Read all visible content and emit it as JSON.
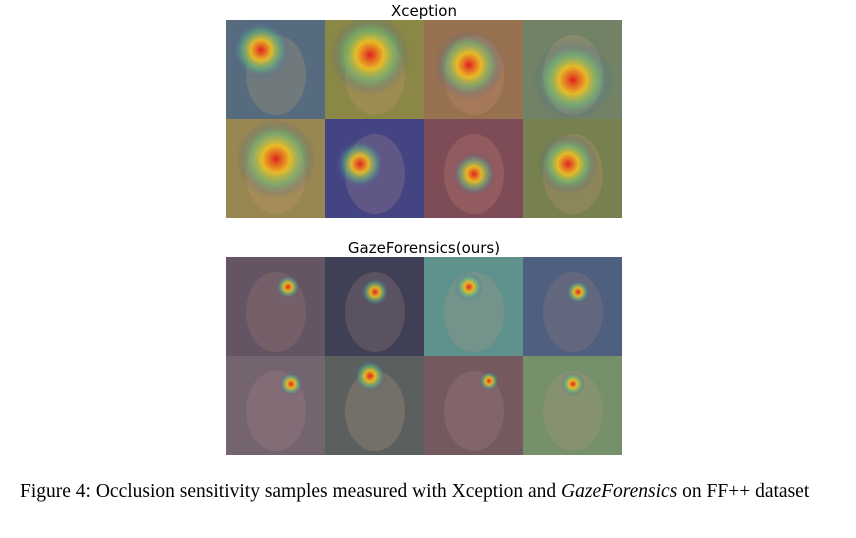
{
  "figure": {
    "panels": [
      {
        "title": "Xception"
      },
      {
        "title": "GazeForensics(ours)"
      }
    ],
    "caption": {
      "prefix": "Figure 4: Occlusion sensitivity samples measured with Xception and ",
      "emphasis": "GazeForensics",
      "suffix": " on FF++ dataset"
    }
  }
}
